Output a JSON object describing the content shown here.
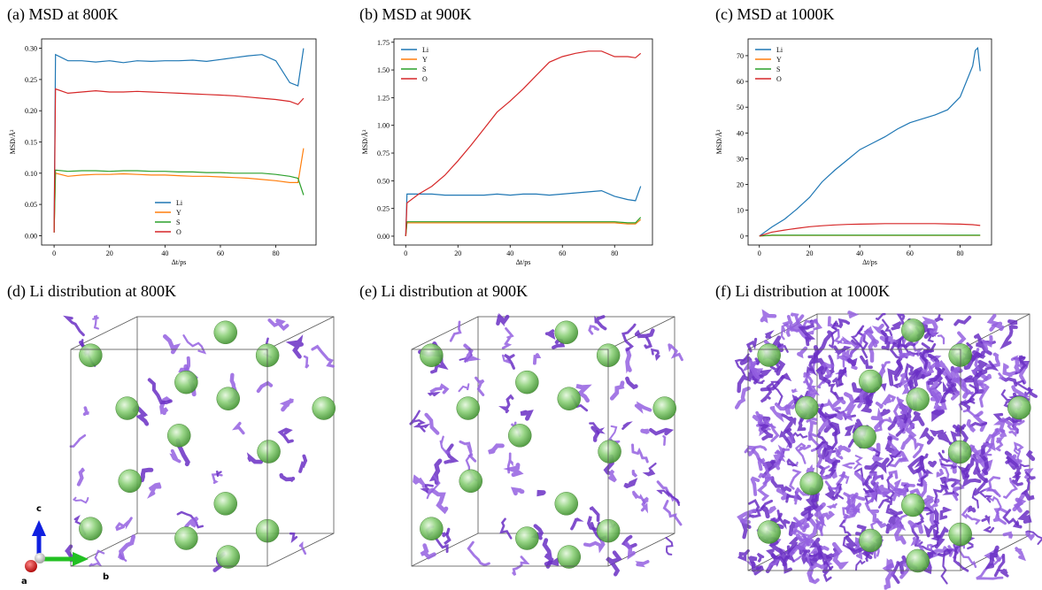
{
  "chart_data": [
    {
      "type": "line",
      "title": "(a)  MSD at 800K",
      "xlabel": "Δt/ps",
      "ylabel": "MSD/Å²",
      "x": [
        0,
        0.5,
        5,
        10,
        15,
        20,
        25,
        30,
        35,
        40,
        45,
        50,
        55,
        60,
        65,
        70,
        75,
        80,
        85,
        88,
        90
      ],
      "series": [
        {
          "name": "Li",
          "color": "#1f77b4",
          "values": [
            0.005,
            0.29,
            0.28,
            0.28,
            0.278,
            0.28,
            0.277,
            0.28,
            0.279,
            0.28,
            0.28,
            0.281,
            0.279,
            0.282,
            0.285,
            0.288,
            0.29,
            0.28,
            0.245,
            0.24,
            0.3
          ]
        },
        {
          "name": "Y",
          "color": "#ff7f0e",
          "values": [
            0.005,
            0.1,
            0.095,
            0.097,
            0.098,
            0.098,
            0.099,
            0.098,
            0.097,
            0.097,
            0.096,
            0.095,
            0.095,
            0.094,
            0.093,
            0.092,
            0.09,
            0.088,
            0.085,
            0.085,
            0.14
          ]
        },
        {
          "name": "S",
          "color": "#2ca02c",
          "values": [
            0.005,
            0.105,
            0.103,
            0.104,
            0.104,
            0.103,
            0.104,
            0.104,
            0.103,
            0.103,
            0.102,
            0.102,
            0.101,
            0.101,
            0.1,
            0.1,
            0.1,
            0.098,
            0.095,
            0.092,
            0.065
          ]
        },
        {
          "name": "O",
          "color": "#d62728",
          "values": [
            0.005,
            0.235,
            0.228,
            0.23,
            0.232,
            0.23,
            0.23,
            0.231,
            0.23,
            0.229,
            0.228,
            0.227,
            0.226,
            0.225,
            0.224,
            0.222,
            0.22,
            0.218,
            0.215,
            0.21,
            0.22
          ]
        }
      ],
      "xlim": [
        -4.5,
        94.5
      ],
      "xticks": [
        0,
        20,
        40,
        60,
        80
      ],
      "ylim": [
        -0.015,
        0.315
      ],
      "yticks": [
        {
          "value": 0,
          "label": "0.00"
        },
        0.05,
        {
          "value": 0.1,
          "label": "0.10"
        },
        0.15,
        {
          "value": 0.2,
          "label": "0.20"
        },
        0.25,
        {
          "value": 0.3,
          "label": "0.30"
        }
      ],
      "legend": "lower center"
    },
    {
      "type": "line",
      "title": "(b)  MSD at 900K",
      "xlabel": "Δt/ps",
      "ylabel": "MSD/Å²",
      "x": [
        0,
        0.5,
        5,
        10,
        15,
        20,
        25,
        30,
        35,
        40,
        45,
        50,
        55,
        60,
        65,
        70,
        75,
        80,
        85,
        88,
        90
      ],
      "series": [
        {
          "name": "Li",
          "color": "#1f77b4",
          "values": [
            0,
            0.38,
            0.38,
            0.38,
            0.37,
            0.37,
            0.37,
            0.37,
            0.38,
            0.37,
            0.38,
            0.38,
            0.37,
            0.38,
            0.39,
            0.4,
            0.41,
            0.36,
            0.33,
            0.32,
            0.45
          ]
        },
        {
          "name": "Y",
          "color": "#ff7f0e",
          "values": [
            0,
            0.12,
            0.12,
            0.12,
            0.12,
            0.12,
            0.12,
            0.12,
            0.12,
            0.12,
            0.12,
            0.12,
            0.12,
            0.12,
            0.12,
            0.12,
            0.12,
            0.12,
            0.11,
            0.11,
            0.15
          ]
        },
        {
          "name": "S",
          "color": "#2ca02c",
          "values": [
            0,
            0.13,
            0.13,
            0.13,
            0.13,
            0.13,
            0.13,
            0.13,
            0.13,
            0.13,
            0.13,
            0.13,
            0.13,
            0.13,
            0.13,
            0.13,
            0.13,
            0.13,
            0.12,
            0.12,
            0.17
          ]
        },
        {
          "name": "O",
          "color": "#d62728",
          "values": [
            0,
            0.3,
            0.38,
            0.45,
            0.55,
            0.68,
            0.82,
            0.97,
            1.12,
            1.22,
            1.33,
            1.45,
            1.57,
            1.62,
            1.65,
            1.67,
            1.67,
            1.62,
            1.62,
            1.61,
            1.65
          ]
        }
      ],
      "xlim": [
        -4.5,
        94.5
      ],
      "xticks": [
        0,
        20,
        40,
        60,
        80
      ],
      "ylim": [
        -0.08,
        1.78
      ],
      "yticks": [
        {
          "value": 0,
          "label": "0.00"
        },
        0.25,
        {
          "value": 0.5,
          "label": "0.50"
        },
        0.75,
        {
          "value": 1,
          "label": "1.00"
        },
        1.25,
        {
          "value": 1.5,
          "label": "1.50"
        },
        1.75
      ],
      "legend": "upper left"
    },
    {
      "type": "line",
      "title": "(c)  MSD at 1000K",
      "xlabel": "Δt/ps",
      "ylabel": "MSD/Å²",
      "x": [
        0,
        5,
        10,
        15,
        20,
        25,
        30,
        35,
        40,
        45,
        50,
        55,
        60,
        65,
        70,
        75,
        80,
        85,
        86,
        87,
        88
      ],
      "series": [
        {
          "name": "Li",
          "color": "#1f77b4",
          "values": [
            0,
            3.5,
            6.5,
            10.5,
            15,
            21,
            25.5,
            29.5,
            33.5,
            36,
            38.5,
            41.5,
            44,
            45.5,
            47,
            49,
            54,
            66,
            72,
            73,
            64
          ]
        },
        {
          "name": "Y",
          "color": "#ff7f0e",
          "values": [
            0,
            0.2,
            0.2,
            0.2,
            0.2,
            0.2,
            0.2,
            0.2,
            0.2,
            0.2,
            0.2,
            0.2,
            0.2,
            0.2,
            0.2,
            0.2,
            0.2,
            0.2,
            0.2,
            0.2,
            0.2
          ]
        },
        {
          "name": "S",
          "color": "#2ca02c",
          "values": [
            0,
            0.3,
            0.3,
            0.3,
            0.3,
            0.3,
            0.3,
            0.3,
            0.3,
            0.3,
            0.3,
            0.3,
            0.3,
            0.3,
            0.3,
            0.3,
            0.3,
            0.3,
            0.3,
            0.3,
            0.3
          ]
        },
        {
          "name": "O",
          "color": "#d62728",
          "values": [
            0,
            1.5,
            2.3,
            3,
            3.6,
            4,
            4.3,
            4.5,
            4.6,
            4.7,
            4.8,
            4.8,
            4.8,
            4.8,
            4.8,
            4.7,
            4.6,
            4.4,
            4.3,
            4.2,
            4.1
          ]
        }
      ],
      "xlim": [
        -4.5,
        92.5
      ],
      "xticks": [
        0,
        20,
        40,
        60,
        80
      ],
      "ylim": [
        -3.5,
        76.5
      ],
      "yticks": [
        0,
        10,
        20,
        30,
        40,
        50,
        60,
        70
      ],
      "legend": "upper left"
    }
  ],
  "images": [
    {
      "title": "(d)  Li distribution at 800K"
    },
    {
      "title": "(e)  Li distribution at 900K"
    },
    {
      "title": "(f)  Li distribution at 1000K"
    }
  ],
  "axes": {
    "a": "a",
    "b": "b",
    "c": "c"
  }
}
